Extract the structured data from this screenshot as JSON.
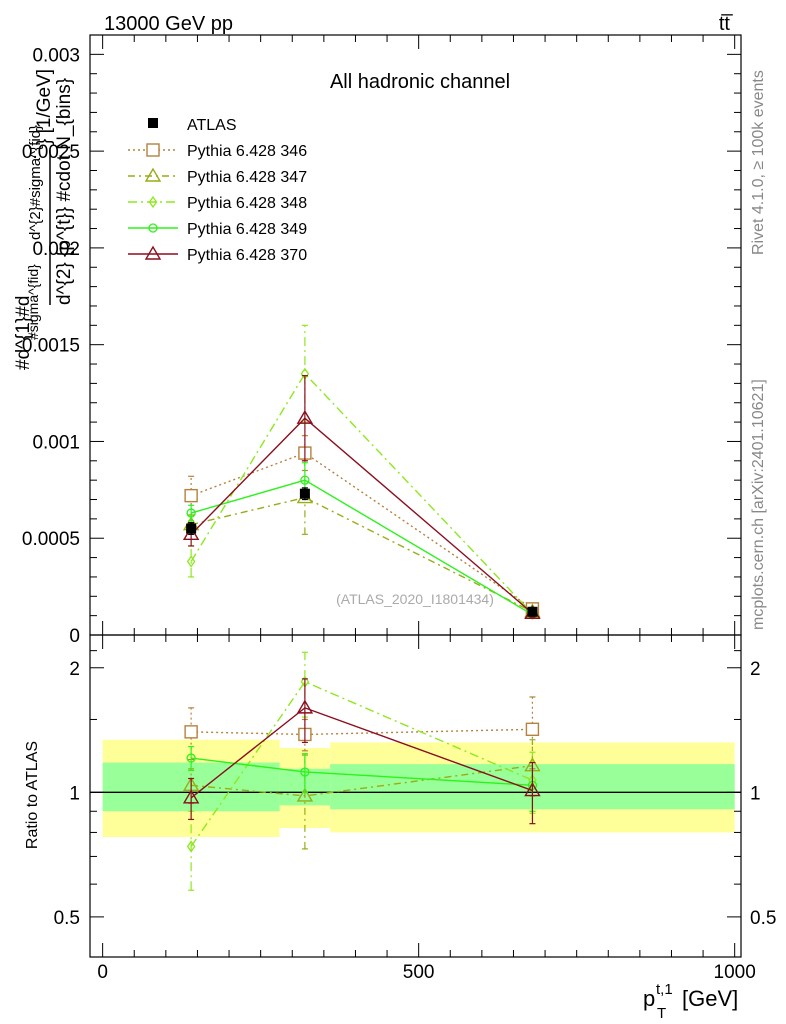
{
  "header": {
    "energy_label": "13000 GeV pp",
    "process_label": "tt̅"
  },
  "side_labels": {
    "rivet": "Rivet 4.1.0, ≥ 100k events",
    "mcplots": "mcplots.cern.ch [arXiv:2401.10621]"
  },
  "chart_data": [
    {
      "type": "line",
      "title": "All hadronic channel",
      "watermark": "(ATLAS_2020_I1801434)",
      "ylabel_lines": [
        "#d^{1}#d",
        "#sigma^{fid}",
        "d^{2}#sigma^{fid}",
        "d^{2} {p^{t}} #cdot N_{bins}",
        "} [1/GeV]"
      ],
      "ylim": [
        0,
        0.0031
      ],
      "xlim": [
        -20,
        1010
      ],
      "yticks": [
        {
          "v": 0.0005,
          "label": "0.0005"
        },
        {
          "v": 0.001,
          "label": "0.001"
        },
        {
          "v": 0.0015,
          "label": "0.0015"
        },
        {
          "v": 0.002,
          "label": "0.002"
        },
        {
          "v": 0.0025,
          "label": "0.0025"
        },
        {
          "v": 0.003,
          "label": "0.003"
        },
        {
          "v": 0,
          "label": "0"
        }
      ],
      "bins": [
        {
          "lo": 0,
          "hi": 280,
          "center": 140
        },
        {
          "lo": 280,
          "hi": 360,
          "center": 320
        },
        {
          "lo": 360,
          "hi": 1000,
          "center": 680
        }
      ],
      "data": {
        "name": "ATLAS",
        "x": [
          140,
          320,
          680
        ],
        "y": [
          0.00055,
          0.00073,
          0.00012
        ],
        "err": [
          3e-05,
          3e-05,
          1.5e-05
        ]
      },
      "series": [
        {
          "name": "Pythia 6.428 346",
          "color": "#b5813e",
          "dash": "2,3",
          "marker": "square",
          "y": [
            0.00072,
            0.00094,
            0.000135
          ],
          "err": [
            0.0001,
            9e-05,
            2e-05
          ]
        },
        {
          "name": "Pythia 6.428 347",
          "color": "#9aac17",
          "dash": "7,4,2,4",
          "marker": "triangle",
          "y": [
            0.00057,
            0.00071,
            0.00012
          ],
          "err": [
            5e-05,
            0.00019,
            2e-05
          ]
        },
        {
          "name": "Pythia 6.428 348",
          "color": "#8ee81e",
          "dash": "9,4,2,4",
          "marker": "diamond",
          "y": [
            0.00038,
            0.00135,
            0.00011
          ],
          "err": [
            8e-05,
            0.00025,
            2e-05
          ]
        },
        {
          "name": "Pythia 6.428 349",
          "color": "#2ef21c",
          "dash": "",
          "marker": "circle",
          "y": [
            0.00063,
            0.0008,
            0.000105
          ],
          "err": [
            4e-05,
            9e-05,
            1.5e-05
          ]
        },
        {
          "name": "Pythia 6.428 370",
          "color": "#8b0f1f",
          "dash": "",
          "marker": "triangle",
          "y": [
            0.00052,
            0.00112,
            0.000112
          ],
          "err": [
            6e-05,
            0.00022,
            2e-05
          ]
        }
      ],
      "legend_position": "top-left"
    },
    {
      "type": "line",
      "ylabel": "Ratio to ATLAS",
      "xlabel": "p_T^{t,1} [GeV]",
      "xlabel_main": "p",
      "xlabel_sub": "T",
      "xlabel_sup": "t,1",
      "xlabel_unit": "[GeV]",
      "ylim": [
        0.4,
        2.4
      ],
      "xlim": [
        -20,
        1010
      ],
      "xticks": [
        {
          "v": 0,
          "label": "0"
        },
        {
          "v": 500,
          "label": "500"
        },
        {
          "v": 1000,
          "label": "1000"
        }
      ],
      "yticks": [
        {
          "v": 0.5,
          "label": "0.5"
        },
        {
          "v": 1,
          "label": "1"
        },
        {
          "v": 2,
          "label": "2"
        }
      ],
      "bands": [
        {
          "lo": 0,
          "hi": 280,
          "yellow": [
            0.78,
            1.34
          ],
          "green": [
            0.9,
            1.18
          ]
        },
        {
          "lo": 280,
          "hi": 360,
          "yellow": [
            0.82,
            1.28
          ],
          "green": [
            0.93,
            1.14
          ]
        },
        {
          "lo": 360,
          "hi": 1000,
          "yellow": [
            0.8,
            1.32
          ],
          "green": [
            0.91,
            1.17
          ]
        }
      ],
      "series": [
        {
          "name": "Pythia 6.428 346",
          "y": [
            1.4,
            1.38,
            1.42
          ],
          "err": [
            0.2,
            0.12,
            0.28
          ]
        },
        {
          "name": "Pythia 6.428 347",
          "y": [
            1.04,
            0.98,
            1.16
          ],
          "err": [
            0.1,
            0.25,
            0.18
          ]
        },
        {
          "name": "Pythia 6.428 348",
          "y": [
            0.74,
            1.85,
            1.07
          ],
          "err": [
            0.16,
            0.33,
            0.18
          ]
        },
        {
          "name": "Pythia 6.428 349",
          "y": [
            1.21,
            1.12,
            1.04
          ],
          "err": [
            0.08,
            0.12,
            0.14
          ]
        },
        {
          "name": "Pythia 6.428 370",
          "y": [
            0.97,
            1.6,
            1.01
          ],
          "err": [
            0.11,
            0.28,
            0.17
          ]
        }
      ]
    }
  ]
}
